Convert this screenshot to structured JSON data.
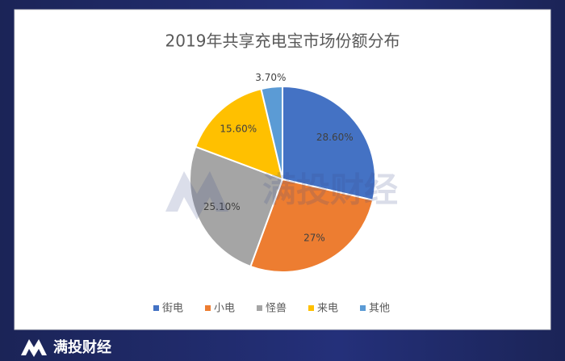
{
  "chart_data": {
    "type": "pie",
    "title": "2019年共享充电宝市场份额分布",
    "categories": [
      "街电",
      "小电",
      "怪兽",
      "来电",
      "其他"
    ],
    "values": [
      28.6,
      27,
      25.1,
      15.6,
      3.7
    ],
    "value_labels": [
      "28.60%",
      "27%",
      "25.10%",
      "15.60%",
      "3.70%"
    ],
    "colors": [
      "#4472c4",
      "#ed7d31",
      "#a5a5a5",
      "#ffc000",
      "#5b9bd5"
    ],
    "legend": "bottom",
    "watermark": "满投财经"
  },
  "footer": {
    "brand": "满投财经"
  }
}
